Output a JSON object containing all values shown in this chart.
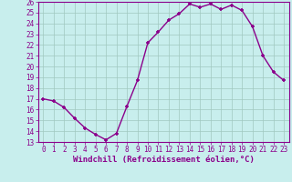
{
  "x": [
    0,
    1,
    2,
    3,
    4,
    5,
    6,
    7,
    8,
    9,
    10,
    11,
    12,
    13,
    14,
    15,
    16,
    17,
    18,
    19,
    20,
    21,
    22,
    23
  ],
  "y": [
    17.0,
    16.8,
    16.2,
    15.2,
    14.3,
    13.7,
    13.2,
    13.8,
    16.3,
    18.7,
    22.2,
    23.2,
    24.3,
    24.9,
    25.8,
    25.5,
    25.8,
    25.3,
    25.7,
    25.2,
    23.7,
    21.0,
    19.5,
    18.7
  ],
  "line_color": "#8B008B",
  "marker": "+",
  "marker_size": 3.0,
  "bg_color": "#c8eeed",
  "grid_color": "#a0c8c0",
  "xlabel": "Windchill (Refroidissement éolien,°C)",
  "ylim": [
    13,
    26
  ],
  "xlim": [
    -0.5,
    23.5
  ],
  "yticks": [
    13,
    14,
    15,
    16,
    17,
    18,
    19,
    20,
    21,
    22,
    23,
    24,
    25,
    26
  ],
  "xticks": [
    0,
    1,
    2,
    3,
    4,
    5,
    6,
    7,
    8,
    9,
    10,
    11,
    12,
    13,
    14,
    15,
    16,
    17,
    18,
    19,
    20,
    21,
    22,
    23
  ],
  "tick_fontsize": 5.5,
  "label_fontsize": 6.5,
  "line_width": 1.0,
  "marker_linewidth": 1.2
}
